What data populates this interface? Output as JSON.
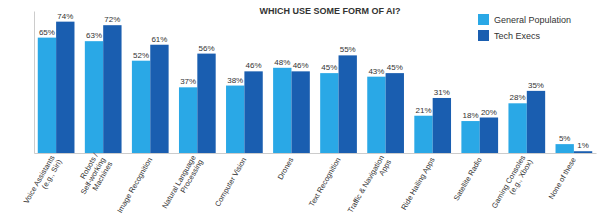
{
  "chart_data": {
    "type": "bar",
    "title": "WHICH USE SOME FORM OF AI?",
    "categories": [
      "Voice Assistants (e.g., Siri)",
      "Robots / Self-working Machines",
      "Image Recognition",
      "Natural Language Processing",
      "Computer Vision",
      "Drones",
      "Text Recognition",
      "Traffic & Navigation Apps",
      "Ride Hailing Apps",
      "Satellite Radio",
      "Gaming Consoles (e.g., Xbox)",
      "None of these"
    ],
    "series": [
      {
        "name": "General Population",
        "color": "#2aa8e6",
        "values": [
          65,
          63,
          52,
          37,
          38,
          48,
          45,
          43,
          21,
          18,
          28,
          5
        ],
        "value_labels": [
          "65%",
          "63%",
          "52%",
          "37%",
          "38%",
          "48%",
          "45%",
          "43%",
          "21%",
          "18%",
          "28%",
          "5%"
        ]
      },
      {
        "name": "Tech Execs",
        "color": "#1a5eb0",
        "values": [
          74,
          72,
          61,
          56,
          46,
          46,
          55,
          45,
          31,
          20,
          35,
          1
        ],
        "value_labels": [
          "74%",
          "72%",
          "61%",
          "56%",
          "46%",
          "46%",
          "55%",
          "45%",
          "31%",
          "20%",
          "35%",
          "1%"
        ]
      }
    ],
    "ylim": [
      0,
      80
    ],
    "tick_labels": "x",
    "data_labels": true,
    "legend": "top-right"
  }
}
